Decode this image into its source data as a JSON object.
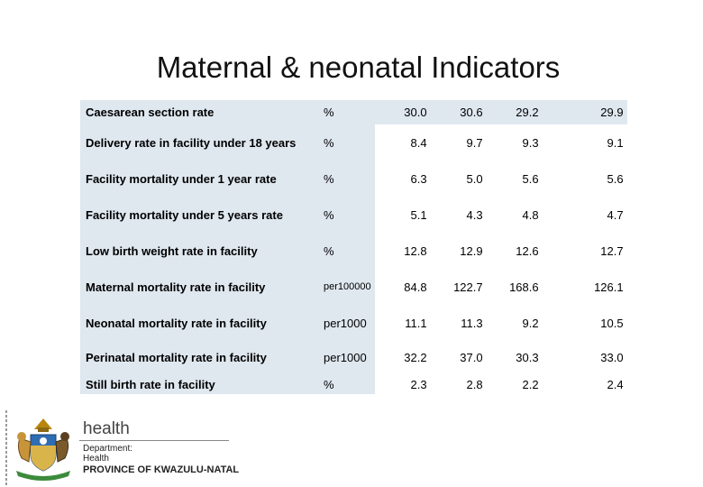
{
  "title": "Maternal & neonatal Indicators",
  "rows": [
    {
      "label": "Caesarean section rate",
      "unit": "%",
      "v1": "30.0",
      "v2": "30.6",
      "v3": "29.2",
      "v4": "29.9"
    },
    {
      "label": "Delivery rate in facility under 18 years",
      "unit": "%",
      "v1": "8.4",
      "v2": "9.7",
      "v3": "9.3",
      "v4": "9.1"
    },
    {
      "label": "Facility mortality under 1 year rate",
      "unit": "%",
      "v1": "6.3",
      "v2": "5.0",
      "v3": "5.6",
      "v4": "5.6"
    },
    {
      "label": "Facility mortality under 5 years rate",
      "unit": "%",
      "v1": "5.1",
      "v2": "4.3",
      "v3": "4.8",
      "v4": "4.7"
    },
    {
      "label": "Low birth weight rate in facility",
      "unit": "%",
      "v1": "12.8",
      "v2": "12.9",
      "v3": "12.6",
      "v4": "12.7"
    },
    {
      "label": "Maternal mortality rate in facility",
      "unit": "per100000",
      "v1": "84.8",
      "v2": "122.7",
      "v3": "168.6",
      "v4": "126.1"
    },
    {
      "label": "Neonatal mortality rate in facility",
      "unit": "per1000",
      "v1": "11.1",
      "v2": "11.3",
      "v3": "9.2",
      "v4": "10.5"
    },
    {
      "label": "Perinatal mortality rate in facility",
      "unit": "per1000",
      "v1": "32.2",
      "v2": "37.0",
      "v3": "30.3",
      "v4": "33.0"
    },
    {
      "label": "Still birth rate in facility",
      "unit": "%",
      "v1": "2.3",
      "v2": "2.8",
      "v3": "2.2",
      "v4": "2.4"
    }
  ],
  "footer": {
    "health": "health",
    "department": "Department:",
    "dept_name": "Health",
    "province": "PROVINCE OF KWAZULU-NATAL",
    "crest_icon": "coat-of-arms-icon"
  }
}
